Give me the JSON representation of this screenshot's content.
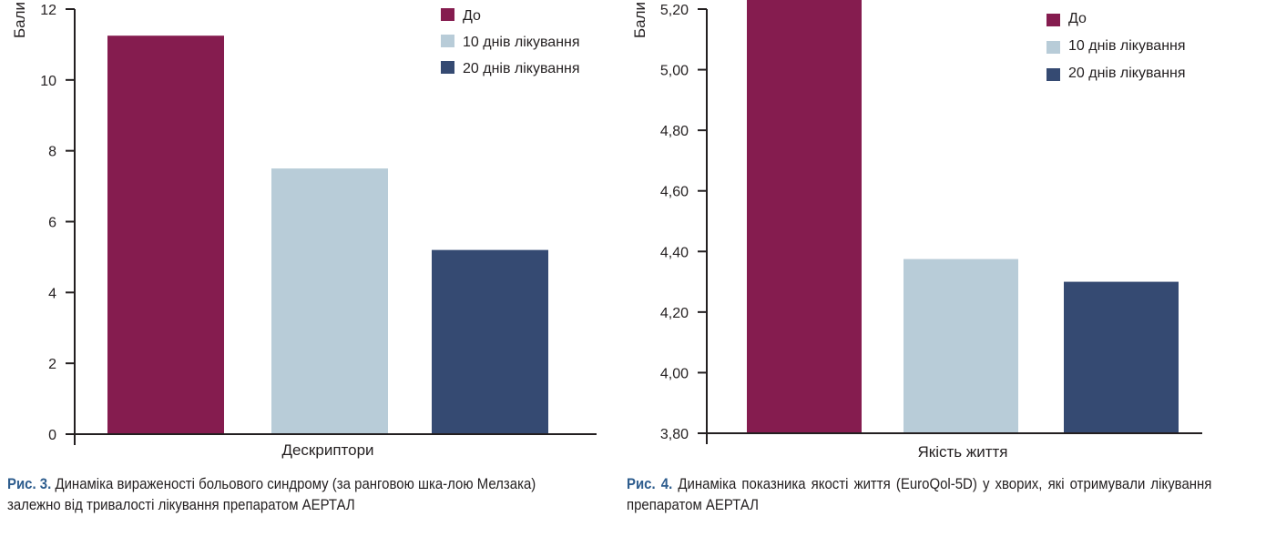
{
  "figures": [
    {
      "caption_label": "Рис. 3.",
      "caption_text": " Динаміка вираженості больового синдрому (за ранговою шка-лою Мелзака) залежно від тривалості лікування препаратом АЕРТАЛ"
    },
    {
      "caption_label": "Рис. 4.",
      "caption_text": " Динаміка показника якості життя (EuroQol-5D) у хворих, які отримували лікування препаратом АЕРТАЛ"
    }
  ],
  "colors": {
    "do": "#851c4f",
    "d10": "#b8ccd8",
    "d20": "#354a72",
    "axis": "#231f20"
  },
  "chart_data": [
    {
      "type": "bar",
      "xlabel": "Дескриптори",
      "ylabel": "Бали",
      "ylim": [
        0,
        12
      ],
      "yticks": [
        "0",
        "2",
        "4",
        "6",
        "8",
        "10",
        "12"
      ],
      "categories": [
        "Дескриптори"
      ],
      "series": [
        {
          "name": "До",
          "values": [
            11.25
          ],
          "color": "#851c4f"
        },
        {
          "name": "10 днів лікування",
          "values": [
            7.5
          ],
          "color": "#b8ccd8"
        },
        {
          "name": "20 днів лікування",
          "values": [
            5.2
          ],
          "color": "#354a72"
        }
      ],
      "legend": "top-right",
      "grid": false
    },
    {
      "type": "bar",
      "xlabel": "Якість життя",
      "ylabel": "Бали",
      "ylim": [
        3.8,
        5.2
      ],
      "yticks": [
        "3,80",
        "4,00",
        "4,20",
        "4,40",
        "4,60",
        "4,80",
        "5,00",
        "5,20"
      ],
      "categories": [
        "Якість життя"
      ],
      "series": [
        {
          "name": "До",
          "values": [
            5.26
          ],
          "color": "#851c4f"
        },
        {
          "name": "10 днів лікування",
          "values": [
            4.375
          ],
          "color": "#b8ccd8"
        },
        {
          "name": "20 днів лікування",
          "values": [
            4.3
          ],
          "color": "#354a72"
        }
      ],
      "legend": "top-right",
      "grid": false
    }
  ]
}
